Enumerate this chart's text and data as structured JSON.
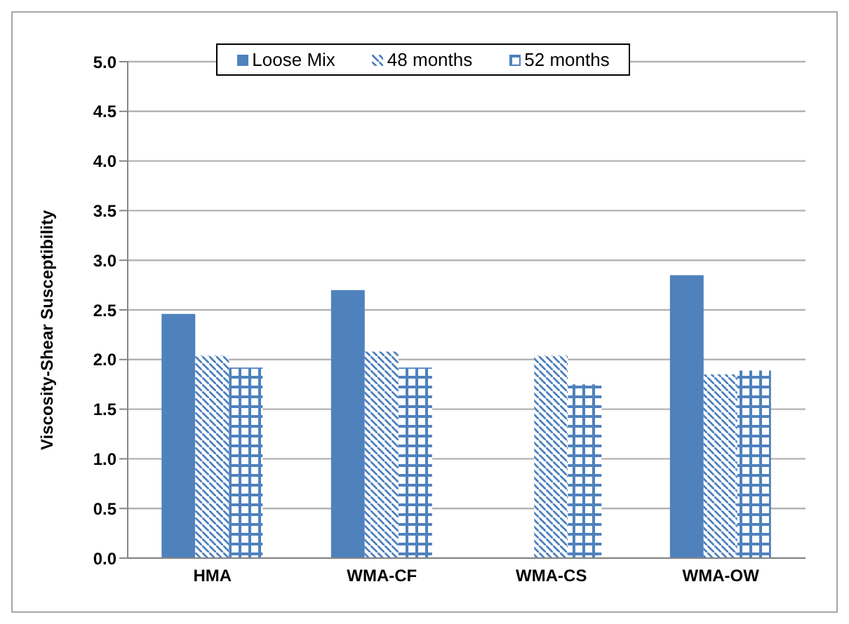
{
  "chart_data": {
    "type": "bar",
    "ylabel": "Viscosity-Shear Susceptibility",
    "categories": [
      "HMA",
      "WMA-CF",
      "WMA-CS",
      "WMA-OW"
    ],
    "series": [
      {
        "name": "Loose Mix",
        "color": "#4f81bd",
        "values": [
          2.46,
          2.7,
          null,
          2.85
        ]
      },
      {
        "name": "48 months",
        "color": "#4f81bd",
        "values": [
          2.04,
          2.08,
          2.04,
          1.85
        ]
      },
      {
        "name": "52 months",
        "color": "#4f81bd",
        "values": [
          1.92,
          1.92,
          1.75,
          1.89
        ]
      }
    ],
    "ylim": [
      0,
      5
    ],
    "yticks": [
      {
        "value": 0,
        "label": "0.0"
      },
      0.5,
      {
        "value": 1,
        "label": "1.0"
      },
      1.5,
      {
        "value": 2,
        "label": "2.0"
      },
      2.5,
      {
        "value": 3,
        "label": "3.0"
      },
      3.5,
      {
        "value": 4,
        "label": "4.0"
      },
      4.5,
      {
        "value": 5,
        "label": "5.0"
      }
    ],
    "grid": "y",
    "legend": "top"
  }
}
